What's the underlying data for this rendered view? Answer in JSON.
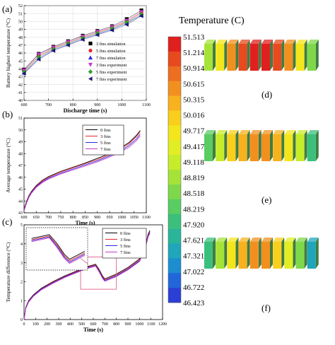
{
  "panels": {
    "a": {
      "label": "(a)"
    },
    "b": {
      "label": "(b)"
    },
    "c": {
      "label": "(c)"
    },
    "d": {
      "label": "(d)"
    },
    "e": {
      "label": "(e)"
    },
    "f": {
      "label": "(f)"
    }
  },
  "colorbar": {
    "title": "Temperature (C)",
    "ticks": [
      "51.513",
      "51.214",
      "50.914",
      "50.615",
      "50.315",
      "50.016",
      "49.717",
      "49.417",
      "49.118",
      "48.819",
      "48.518",
      "48.219",
      "47.920",
      "47.621",
      "47.321",
      "47.022",
      "46.722",
      "46.423"
    ],
    "colors": [
      "#e0201e",
      "#e74a1e",
      "#ec6f20",
      "#f2901f",
      "#f7b21e",
      "#f9cf1c",
      "#f4e61c",
      "#e2ee24",
      "#c7ec2a",
      "#a6e338",
      "#7fd84a",
      "#59cc62",
      "#3bc07c",
      "#2ab59a",
      "#1fa6ba",
      "#1c8ed0",
      "#2166da",
      "#2b3ed6"
    ]
  },
  "colors": {
    "black": "#000000",
    "red": "#e8262a",
    "blue": "#2a2ae8",
    "magenta": "#c43ac4",
    "green": "#2ca02c",
    "box": "#e06090"
  },
  "chart_data": [
    {
      "type": "scatter",
      "panel": "a",
      "xlabel": "Discharge time (s)",
      "ylabel": "Battery highest temperature (°C)",
      "xlim": [
        600,
        1100
      ],
      "ylim": [
        40,
        52
      ],
      "xticks": [
        "600",
        "700",
        "800",
        "900",
        "1000",
        "1100"
      ],
      "yticks": [
        "40",
        "41",
        "42",
        "43",
        "44",
        "45",
        "46",
        "47",
        "48",
        "49",
        "50",
        "51",
        "52"
      ],
      "x": [
        600,
        660,
        720,
        780,
        840,
        900,
        960,
        1020,
        1080
      ],
      "series": [
        {
          "name": "3 fins  simulation",
          "marker": "square",
          "color": "#000000",
          "values": [
            43.9,
            45.9,
            46.8,
            47.5,
            48.2,
            48.8,
            49.4,
            50.3,
            51.4
          ]
        },
        {
          "name": "5 fins  simulation",
          "marker": "circle",
          "color": "#e8262a",
          "values": [
            43.7,
            45.6,
            46.6,
            47.3,
            48.0,
            48.6,
            49.2,
            50.0,
            51.1
          ]
        },
        {
          "name": "7 fins  simulation",
          "marker": "triangle-up",
          "color": "#2a2ae8",
          "values": [
            43.5,
            45.3,
            46.4,
            47.1,
            47.8,
            48.4,
            49.0,
            49.8,
            50.8
          ]
        },
        {
          "name": "3 fins  experiment",
          "marker": "triangle-down",
          "color": "#c43ac4",
          "values": [
            43.8,
            45.8,
            46.7,
            47.4,
            48.1,
            48.7,
            49.3,
            50.1,
            51.2
          ]
        },
        {
          "name": "5 fins  experiment",
          "marker": "diamond",
          "color": "#2ca02c",
          "values": [
            43.6,
            45.5,
            46.5,
            47.2,
            47.9,
            48.5,
            49.1,
            49.9,
            50.9
          ]
        },
        {
          "name": "7 fins  experiment",
          "marker": "triangle-left",
          "color": "#1a1a6e",
          "values": [
            43.4,
            45.2,
            46.3,
            47.0,
            47.7,
            48.3,
            48.9,
            49.6,
            50.7
          ]
        }
      ]
    },
    {
      "type": "line",
      "panel": "b",
      "xlabel": "Time (s)",
      "ylabel": "Average temperature (°C)",
      "xlim": [
        600,
        1100
      ],
      "ylim": [
        43,
        51
      ],
      "xticks": [
        "600",
        "650",
        "700",
        "750",
        "800",
        "850",
        "900",
        "950",
        "1000",
        "1050",
        "1100"
      ],
      "yticks": [
        "43",
        "44",
        "45",
        "46",
        "47",
        "48",
        "49",
        "50",
        "51"
      ],
      "x": [
        600,
        610,
        620,
        630,
        640,
        650,
        675,
        700,
        750,
        800,
        850,
        900,
        950,
        1000,
        1030,
        1060,
        1075
      ],
      "series": [
        {
          "name": "0 fins",
          "color": "#000000",
          "values": [
            43.3,
            43.95,
            44.45,
            44.8,
            45.05,
            45.3,
            45.75,
            46.05,
            46.5,
            46.85,
            47.2,
            47.6,
            48.0,
            48.55,
            48.95,
            49.55,
            49.95
          ]
        },
        {
          "name": "3 fins",
          "color": "#e8262a",
          "values": [
            43.25,
            43.9,
            44.4,
            44.75,
            45.0,
            45.25,
            45.7,
            46.0,
            46.45,
            46.8,
            47.15,
            47.5,
            47.9,
            48.45,
            48.85,
            49.45,
            49.85
          ]
        },
        {
          "name": "5 fins",
          "color": "#2a2ae8",
          "values": [
            43.2,
            43.85,
            44.35,
            44.7,
            44.95,
            45.2,
            45.62,
            45.92,
            46.35,
            46.7,
            47.05,
            47.4,
            47.8,
            48.3,
            48.7,
            49.25,
            49.65
          ]
        },
        {
          "name": "7 fins",
          "color": "#c43ac4",
          "values": [
            43.15,
            43.8,
            44.3,
            44.65,
            44.9,
            45.15,
            45.55,
            45.85,
            46.28,
            46.62,
            46.95,
            47.3,
            47.7,
            48.2,
            48.55,
            49.1,
            49.5
          ]
        }
      ]
    },
    {
      "type": "line",
      "panel": "c",
      "xlabel": "Time (s)",
      "ylabel": "Temperature difference (°C)",
      "xlim": [
        0,
        1200
      ],
      "ylim": [
        0,
        5
      ],
      "xticks": [
        "0",
        "100",
        "200",
        "300",
        "400",
        "500",
        "600",
        "700",
        "800",
        "900",
        "1000",
        "1100",
        "1200"
      ],
      "yticks": [
        "0",
        "1",
        "2",
        "3",
        "4",
        "5"
      ],
      "x": [
        0,
        15,
        40,
        80,
        150,
        250,
        350,
        450,
        550,
        620,
        650,
        680,
        700,
        800,
        900,
        1000,
        1050,
        1075,
        1090
      ],
      "series": [
        {
          "name": "0 fins",
          "color": "#000000",
          "values": [
            0,
            0.65,
            1.0,
            1.3,
            1.65,
            2.0,
            2.3,
            2.55,
            2.8,
            2.92,
            2.65,
            2.3,
            2.15,
            2.4,
            2.75,
            3.2,
            3.9,
            4.5,
            4.7
          ]
        },
        {
          "name": "3 fins",
          "color": "#e8262a",
          "values": [
            0,
            0.62,
            0.97,
            1.27,
            1.62,
            1.97,
            2.27,
            2.52,
            2.76,
            2.88,
            2.6,
            2.25,
            2.1,
            2.35,
            2.7,
            3.15,
            3.85,
            4.45,
            4.65
          ]
        },
        {
          "name": "5 fins",
          "color": "#2a2ae8",
          "values": [
            0,
            0.6,
            0.95,
            1.25,
            1.6,
            1.94,
            2.24,
            2.49,
            2.73,
            2.85,
            2.56,
            2.21,
            2.06,
            2.31,
            2.66,
            3.1,
            3.8,
            4.4,
            4.6
          ]
        },
        {
          "name": "7 fins",
          "color": "#c43ac4",
          "values": [
            0,
            0.58,
            0.92,
            1.22,
            1.57,
            1.91,
            2.21,
            2.46,
            2.7,
            2.82,
            2.52,
            2.17,
            2.02,
            2.27,
            2.62,
            3.06,
            3.75,
            4.35,
            4.55
          ]
        }
      ]
    }
  ]
}
